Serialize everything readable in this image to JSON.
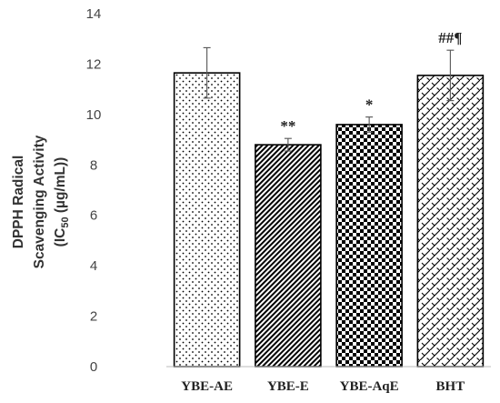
{
  "chart_data": {
    "type": "bar",
    "categories": [
      "YBE-AE",
      "YBE-E",
      "YBE-AqE",
      "BHT"
    ],
    "values": [
      11.65,
      8.8,
      9.6,
      11.55
    ],
    "error": [
      1.0,
      0.25,
      0.3,
      1.0
    ],
    "annotations": [
      "",
      "**",
      "*",
      "##¶"
    ],
    "patterns": [
      "dots",
      "diagonal-lines",
      "checkerboard",
      "diagonal-weave"
    ],
    "ylabel_lines": [
      "DPPH Radical",
      "Scavenging Activity"
    ],
    "ylabel_line3": {
      "prefix": "(IC",
      "subscript": "50",
      "suffix": " (µg/mL))"
    },
    "ylim": [
      0,
      14
    ],
    "yticks": [
      "0",
      "2",
      "4",
      "6",
      "8",
      "10",
      "12",
      "14"
    ],
    "grid": false,
    "colors": {
      "bar_edge": "#000000",
      "pattern": "#000000",
      "bar_fill": "#ffffff",
      "error_bar": "#555555",
      "text": "#222222"
    }
  }
}
